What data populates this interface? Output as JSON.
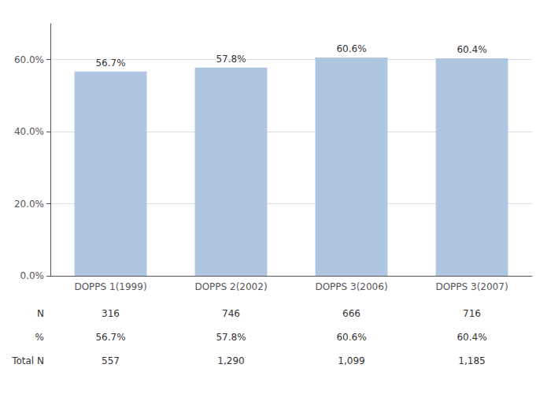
{
  "chart_data": {
    "type": "bar",
    "categories": [
      "DOPPS 1(1999)",
      "DOPPS 2(2002)",
      "DOPPS 3(2006)",
      "DOPPS 3(2007)"
    ],
    "values": [
      56.7,
      57.8,
      60.6,
      60.4
    ],
    "value_labels": [
      "56.7%",
      "57.8%",
      "60.6%",
      "60.4%"
    ],
    "data_labels": true,
    "color": "#aec6e0",
    "ylim": [
      0,
      70
    ],
    "yticks": [
      {
        "value": 0,
        "label": "0.0%"
      },
      {
        "value": 20,
        "label": "20.0%"
      },
      {
        "value": 40,
        "label": "40.0%"
      },
      {
        "value": 60,
        "label": "60.0%"
      }
    ],
    "grid": true,
    "table": [
      {
        "label": "N",
        "cells": [
          "316",
          "746",
          "666",
          "716"
        ]
      },
      {
        "label": "%",
        "cells": [
          "56.7%",
          "57.8%",
          "60.6%",
          "60.4%"
        ]
      },
      {
        "label": "Total N",
        "cells": [
          "557",
          "1,290",
          "1,099",
          "1,185"
        ]
      }
    ]
  }
}
